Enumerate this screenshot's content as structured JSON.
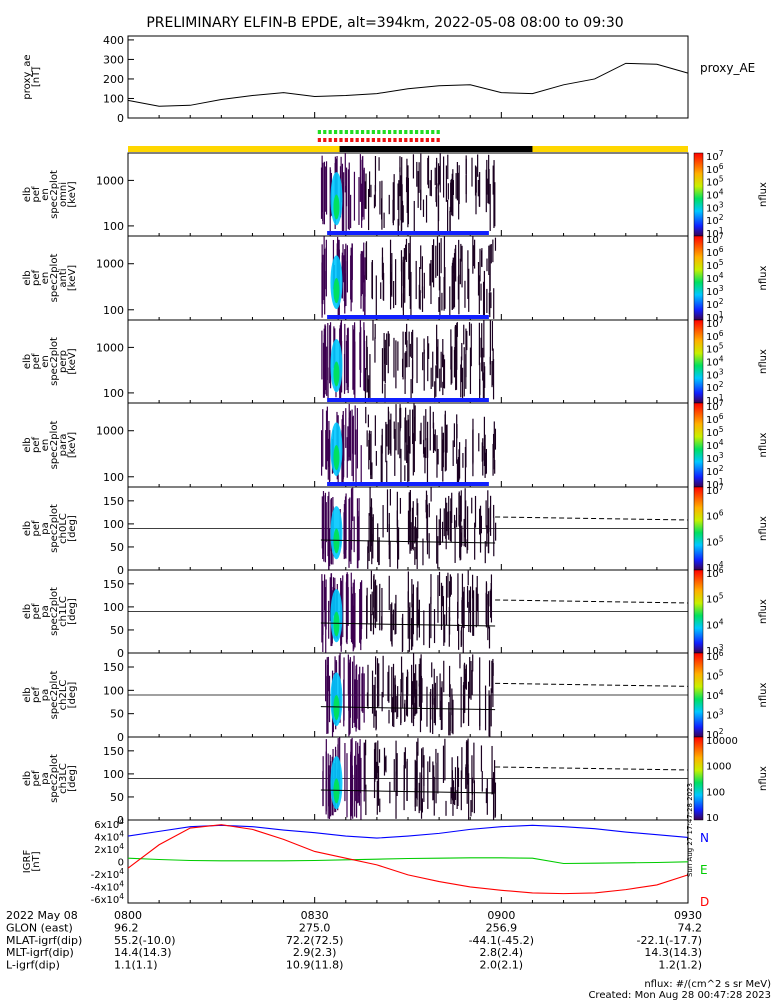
{
  "title": "PRELIMINARY ELFIN-B EPDE, alt=394km, 2022-05-08 08:00 to 09:30",
  "xrange": [
    "08:00",
    "09:30"
  ],
  "panels": [
    {
      "id": "proxy-ae",
      "ylabel": [
        "proxy_ae",
        "[nT]"
      ],
      "yticks": [
        "0",
        "100",
        "200",
        "300",
        "400"
      ],
      "ylim": [
        0,
        420
      ],
      "right_label": "proxy_AE"
    },
    {
      "id": "omni",
      "ylabel": [
        "elb",
        "pef",
        "en",
        "spec2plot",
        "omni",
        "[keV]"
      ],
      "yticks": [
        "100",
        "1000"
      ],
      "scale": "log",
      "cb_ticks": [
        "10^1",
        "10^2",
        "10^3",
        "10^4",
        "10^5",
        "10^6",
        "10^7"
      ],
      "cb_label": "nflux"
    },
    {
      "id": "anti",
      "ylabel": [
        "elb",
        "pef",
        "en",
        "spec2plot",
        "anti",
        "[keV]"
      ],
      "yticks": [
        "100",
        "1000"
      ],
      "scale": "log",
      "cb_ticks": [
        "10^1",
        "10^2",
        "10^3",
        "10^4",
        "10^5",
        "10^6",
        "10^7"
      ],
      "cb_label": "nflux"
    },
    {
      "id": "perp",
      "ylabel": [
        "elb",
        "pef",
        "en",
        "spec2plot",
        "perp",
        "[keV]"
      ],
      "yticks": [
        "100",
        "1000"
      ],
      "scale": "log",
      "cb_ticks": [
        "10^1",
        "10^2",
        "10^3",
        "10^4",
        "10^5",
        "10^6",
        "10^7"
      ],
      "cb_label": "nflux"
    },
    {
      "id": "para",
      "ylabel": [
        "elb",
        "pef",
        "en",
        "spec2plot",
        "para",
        "[keV]"
      ],
      "yticks": [
        "100",
        "1000"
      ],
      "scale": "log",
      "cb_ticks": [
        "10^1",
        "10^2",
        "10^3",
        "10^4",
        "10^5",
        "10^6",
        "10^7"
      ],
      "cb_label": "nflux"
    },
    {
      "id": "ch0",
      "ylabel": [
        "elb",
        "pef",
        "pa",
        "spec2plot",
        "ch0LC",
        "[deg]"
      ],
      "yticks": [
        "0",
        "50",
        "100",
        "150"
      ],
      "ylim": [
        0,
        180
      ],
      "cb_ticks": [
        "10^4",
        "10^5",
        "10^6",
        "10^7"
      ],
      "cb_label": "nflux"
    },
    {
      "id": "ch1",
      "ylabel": [
        "elb",
        "pef",
        "pa",
        "spec2plot",
        "ch1LC",
        "[deg]"
      ],
      "yticks": [
        "0",
        "50",
        "100",
        "150"
      ],
      "ylim": [
        0,
        180
      ],
      "cb_ticks": [
        "10^3",
        "10^4",
        "10^5",
        "10^6"
      ],
      "cb_label": "nflux"
    },
    {
      "id": "ch2",
      "ylabel": [
        "elb",
        "pef",
        "pa",
        "spec2plot",
        "ch2LC",
        "[deg]"
      ],
      "yticks": [
        "0",
        "50",
        "100",
        "150"
      ],
      "ylim": [
        0,
        180
      ],
      "cb_ticks": [
        "10^2",
        "10^3",
        "10^4",
        "10^5",
        "10^6"
      ],
      "cb_label": "nflux"
    },
    {
      "id": "ch3",
      "ylabel": [
        "elb",
        "pef",
        "pa",
        "spec2plot",
        "ch3LC",
        "[deg]"
      ],
      "yticks": [
        "0",
        "50",
        "100",
        "150"
      ],
      "ylim": [
        0,
        180
      ],
      "cb_ticks": [
        "10",
        "100",
        "1000",
        "10000"
      ],
      "cb_label": "nflux"
    },
    {
      "id": "igrf",
      "ylabel": [
        "IGRF",
        "[nT]"
      ],
      "yticks": [
        "6x10^4",
        "4x10^4",
        "2x10^4",
        "0",
        "-2x10^4",
        "-4x10^4",
        "-6x10^4"
      ],
      "legend": [
        "N",
        "E",
        "D"
      ]
    }
  ],
  "chart_data": {
    "type": "line",
    "title": "PRELIMINARY ELFIN-B EPDE, alt=394km, 2022-05-08 08:00 to 09:30",
    "x_minutes": [
      0,
      5,
      10,
      15,
      20,
      25,
      30,
      35,
      40,
      45,
      50,
      55,
      60,
      65,
      70,
      75,
      80,
      85,
      90
    ],
    "series": [
      {
        "name": "proxy_AE",
        "values": [
          90,
          60,
          65,
          95,
          115,
          130,
          110,
          115,
          125,
          150,
          165,
          170,
          130,
          125,
          170,
          200,
          280,
          275,
          230
        ]
      },
      {
        "name": "N",
        "values": [
          38000,
          45000,
          52000,
          54000,
          52000,
          47000,
          43000,
          38000,
          35000,
          38000,
          42000,
          48000,
          52000,
          54000,
          52000,
          49000,
          44000,
          40000,
          36000
        ]
      },
      {
        "name": "E",
        "values": [
          5000,
          3000,
          1500,
          1000,
          1000,
          1000,
          1500,
          2500,
          3500,
          4500,
          5000,
          5500,
          5500,
          5000,
          -3000,
          -2500,
          -2000,
          -1500,
          -500
        ]
      },
      {
        "name": "D",
        "values": [
          -10000,
          25000,
          50000,
          55000,
          48000,
          33000,
          15000,
          5000,
          -5000,
          -20000,
          -30000,
          -38000,
          -43000,
          -47000,
          -48000,
          -47000,
          -42000,
          -35000,
          -20000
        ]
      }
    ],
    "ylim_igrf": [
      -62000,
      62000
    ],
    "time_labels": [
      "0800",
      "0830",
      "0900",
      "0930"
    ],
    "colors": {
      "N": "#0000ff",
      "E": "#00cc00",
      "D": "#ff0000",
      "proxy": "#000000",
      "status_yellow": "#ffd700",
      "status_black": "#000000"
    }
  },
  "footer": {
    "rows": [
      {
        "label": "2022 May 08",
        "values": [
          "0800",
          "0830",
          "0900",
          "0930"
        ]
      },
      {
        "label": "GLON (east)",
        "values": [
          "96.2",
          "275.0",
          "256.9",
          "74.2"
        ]
      },
      {
        "label": "MLAT-igrf(dip)",
        "values": [
          "55.2(-10.0)",
          "72.2(72.5)",
          "-44.1(-45.2)",
          "-22.1(-17.7)"
        ]
      },
      {
        "label": "MLT-igrf(dip)",
        "values": [
          "14.4(14.3)",
          "2.9(2.3)",
          "2.8(2.4)",
          "14.3(14.3)"
        ]
      },
      {
        "label": "L-igrf(dip)",
        "values": [
          "1.1(1.1)",
          "10.9(11.8)",
          "2.0(2.1)",
          "1.2(1.2)"
        ]
      }
    ],
    "units": "nflux: #/(cm^2 s sr MeV)",
    "created": "Created: Mon Aug 28 00:47:28 2023",
    "side_stamp": "Sun Aug 27 17:47:28 2023"
  }
}
